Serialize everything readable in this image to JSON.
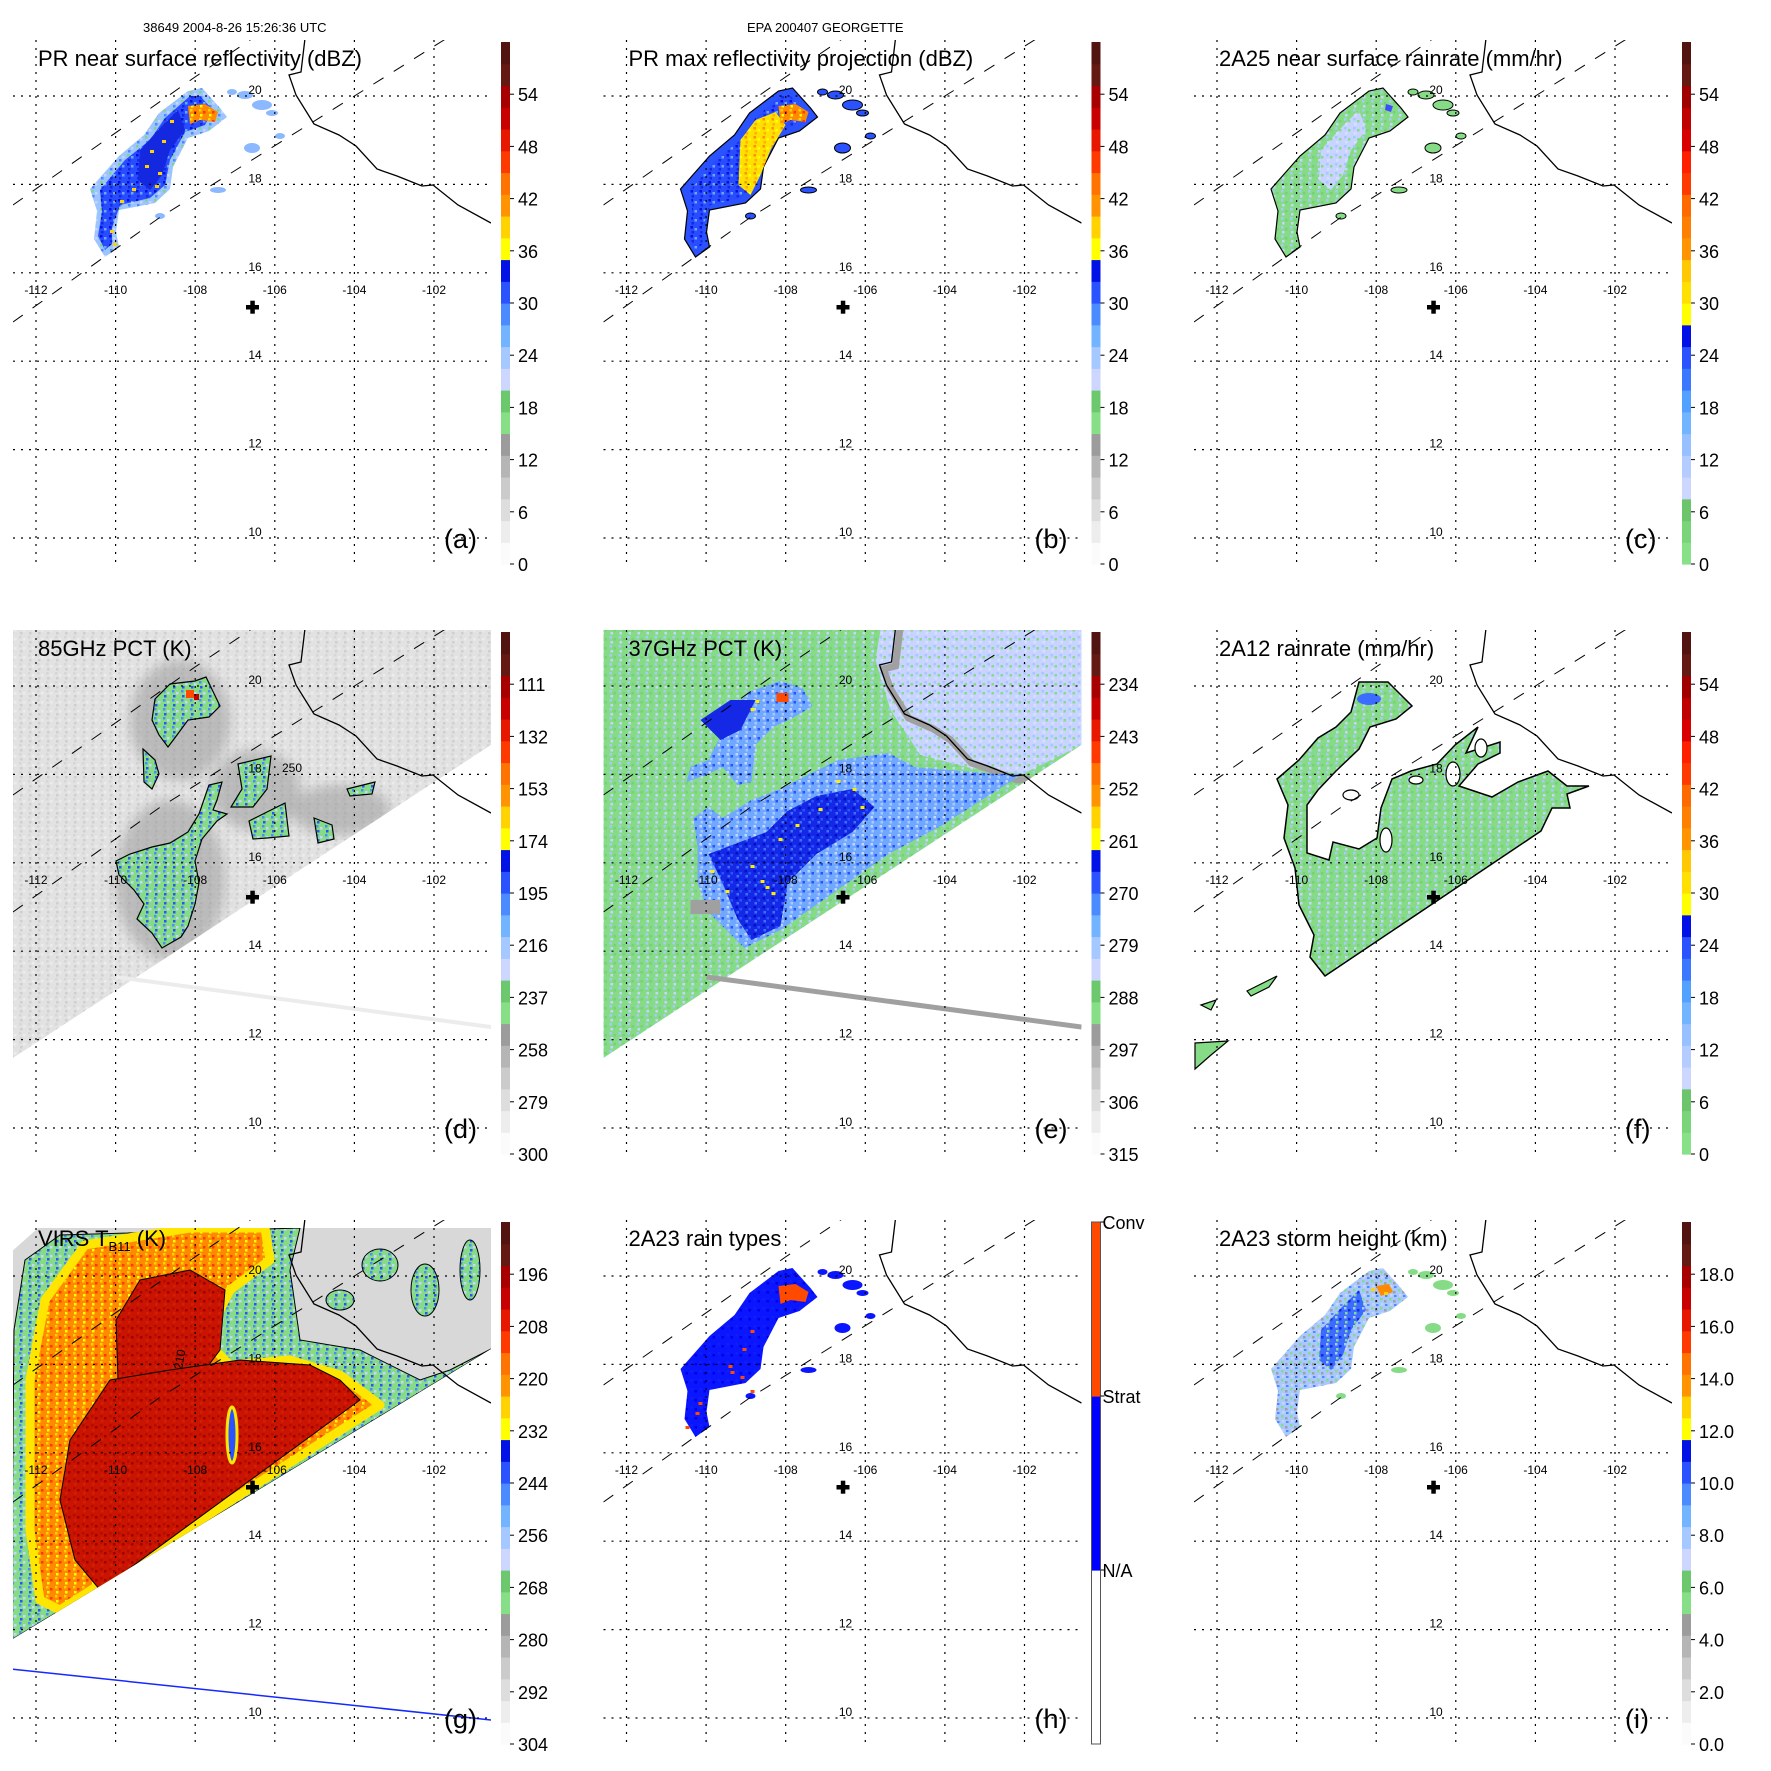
{
  "header": {
    "left": "38649 2004-8-26 15:26:36 UTC",
    "center": "EPA 200407 GEORGETTE"
  },
  "axes": {
    "lon_ticks": [
      "-112",
      "-110",
      "-108",
      "-106",
      "-104",
      "-102"
    ],
    "lat_ticks": [
      "20",
      "18",
      "16",
      "14",
      "12",
      "10"
    ]
  },
  "chart_data": [
    {
      "type": "heatmap",
      "panel": "a",
      "title": "PR near surface reflectivity (dBZ)",
      "letter": "(a)",
      "colorbar_labels": [
        "0",
        "6",
        "12",
        "18",
        "24",
        "30",
        "36",
        "42",
        "48",
        "54"
      ],
      "colorbar_range": [
        0,
        60
      ]
    },
    {
      "type": "heatmap",
      "panel": "b",
      "title": "PR max reflectivity projection (dBZ)",
      "letter": "(b)",
      "colorbar_labels": [
        "0",
        "6",
        "12",
        "18",
        "24",
        "30",
        "36",
        "42",
        "48",
        "54"
      ],
      "colorbar_range": [
        0,
        60
      ]
    },
    {
      "type": "heatmap",
      "panel": "c",
      "title": "2A25 near surface rainrate (mm/hr)",
      "letter": "(c)",
      "colorbar_labels": [
        "0",
        "6",
        "12",
        "18",
        "24",
        "30",
        "36",
        "42",
        "48",
        "54"
      ],
      "colorbar_range": [
        0,
        60
      ]
    },
    {
      "type": "heatmap",
      "panel": "d",
      "title": "85GHz PCT (K)",
      "letter": "(d)",
      "colorbar_labels": [
        "300",
        "279",
        "258",
        "237",
        "216",
        "195",
        "174",
        "153",
        "132",
        "111"
      ],
      "contour_label": "250"
    },
    {
      "type": "heatmap",
      "panel": "e",
      "title": "37GHz PCT (K)",
      "letter": "(e)",
      "colorbar_labels": [
        "315",
        "306",
        "297",
        "288",
        "279",
        "270",
        "261",
        "252",
        "243",
        "234"
      ]
    },
    {
      "type": "heatmap",
      "panel": "f",
      "title": "2A12 rainrate (mm/hr)",
      "letter": "(f)",
      "colorbar_labels": [
        "0",
        "6",
        "12",
        "18",
        "24",
        "30",
        "36",
        "42",
        "48",
        "54"
      ],
      "colorbar_range": [
        0,
        60
      ]
    },
    {
      "type": "heatmap",
      "panel": "g",
      "title": "VIRS T",
      "title_sub": "B11",
      "title_suffix": " (K)",
      "letter": "(g)",
      "colorbar_labels": [
        "304",
        "292",
        "280",
        "268",
        "256",
        "244",
        "232",
        "220",
        "208",
        "196"
      ],
      "contour_label": "210"
    },
    {
      "type": "heatmap",
      "panel": "h",
      "title": "2A23 rain types",
      "letter": "(h)",
      "colorbar_labels": [
        "N/A",
        "Strat",
        "Conv"
      ]
    },
    {
      "type": "heatmap",
      "panel": "i",
      "title": "2A23 storm height (km)",
      "letter": "(i)",
      "colorbar_labels": [
        "0.0",
        "2.0",
        "4.0",
        "6.0",
        "8.0",
        "10.0",
        "12.0",
        "14.0",
        "16.0",
        "18.0"
      ],
      "colorbar_range": [
        0,
        20
      ]
    }
  ],
  "palettes": {
    "standard": [
      "#fbfbfb",
      "#ededed",
      "#dddddd",
      "#cbcbcb",
      "#b5b5b5",
      "#9c9c9c",
      "#86de86",
      "#6cc86c",
      "#ccd6ff",
      "#a4c8ff",
      "#72b4ff",
      "#4a8cff",
      "#2a52ff",
      "#0012e6",
      "#ffff00",
      "#ffd200",
      "#ff9400",
      "#ff7400",
      "#ff3a00",
      "#e81800",
      "#c80000",
      "#a80000",
      "#641a12",
      "#521410"
    ],
    "rain": [
      "#88e088",
      "#7ad47a",
      "#6cc46c",
      "#ccd6ff",
      "#b4ccff",
      "#96c0ff",
      "#72b4ff",
      "#52a0ff",
      "#3c78ff",
      "#2a52ff",
      "#0010e6",
      "#ffff00",
      "#ffe000",
      "#ffc800",
      "#ff9400",
      "#ff8000",
      "#ff6a00",
      "#ff3a00",
      "#ff2000",
      "#d80000",
      "#c00000",
      "#a00000",
      "#641a12",
      "#521410"
    ],
    "raintype": [
      "#ffffff",
      "#0000ff",
      "#ff4a00"
    ]
  },
  "panel_palettes": [
    "standard",
    "standard",
    "rain",
    "standard",
    "standard",
    "rain",
    "standard",
    "raintype",
    "standard"
  ]
}
